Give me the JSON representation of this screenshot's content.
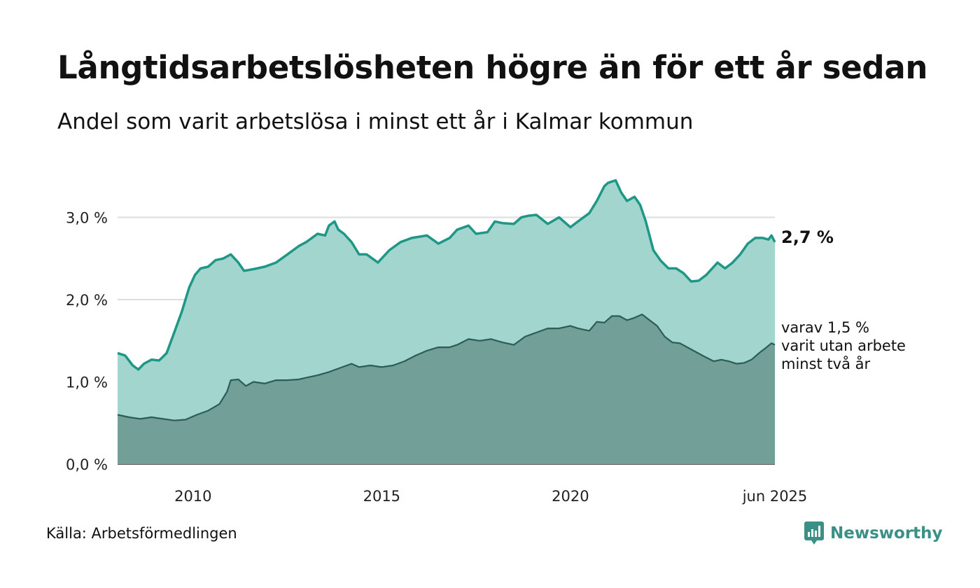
{
  "header": {
    "title": "Långtidsarbetslösheten högre än för ett år sedan",
    "subtitle": "Andel som varit arbetslösa i minst ett år i Kalmar kommun"
  },
  "footer": {
    "source": "Källa: Arbetsförmedlingen",
    "brand": "Newsworthy"
  },
  "colors": {
    "total_line": "#1f9787",
    "total_fill": "#a3d5cf",
    "sub_line": "#2b5e56",
    "sub_fill": "#729f97",
    "grid": "#dddddd",
    "brand": "#3a8f86"
  },
  "chart_data": {
    "type": "area",
    "title": "Långtidsarbetslösheten högre än för ett år sedan",
    "subtitle": "Andel som varit arbetslösa i minst ett år i Kalmar kommun",
    "xlabel": "",
    "ylabel": "",
    "ylim": [
      0,
      3.6
    ],
    "xlim": [
      2008.0,
      2025.42
    ],
    "grid": true,
    "y_ticks": [
      {
        "value": 0,
        "label": "0,0 %"
      },
      {
        "value": 1,
        "label": "1,0 %"
      },
      {
        "value": 2,
        "label": "2,0 %"
      },
      {
        "value": 3,
        "label": "3,0 %"
      }
    ],
    "x_ticks": [
      {
        "value": 2010,
        "label": "2010"
      },
      {
        "value": 2015,
        "label": "2015"
      },
      {
        "value": 2020,
        "label": "2020"
      },
      {
        "value": 2025.42,
        "label": "jun 2025"
      }
    ],
    "annotations": {
      "total_end_label": "2,7 %",
      "sub_end_label": [
        "varav 1,5 %",
        "varit utan arbete",
        "minst två år"
      ]
    },
    "series": [
      {
        "x": [
          2008.0,
          2008.2,
          2008.4,
          2008.55,
          2008.7,
          2008.9,
          2009.1,
          2009.3,
          2009.5,
          2009.7,
          2009.9,
          2010.05,
          2010.2,
          2010.4,
          2010.6,
          2010.8,
          2011.0,
          2011.2,
          2011.35,
          2011.6,
          2011.9,
          2012.2,
          2012.5,
          2012.8,
          2013.0,
          2013.3,
          2013.5,
          2013.6,
          2013.75,
          2013.85,
          2014.0,
          2014.2,
          2014.4,
          2014.6,
          2014.9,
          2015.2,
          2015.5,
          2015.8,
          2016.2,
          2016.5,
          2016.8,
          2017.0,
          2017.3,
          2017.5,
          2017.8,
          2018.0,
          2018.2,
          2018.5,
          2018.7,
          2018.9,
          2019.1,
          2019.4,
          2019.7,
          2020.0,
          2020.2,
          2020.5,
          2020.7,
          2020.9,
          2021.0,
          2021.2,
          2021.35,
          2021.5,
          2021.7,
          2021.85,
          2022.0,
          2022.2,
          2022.4,
          2022.6,
          2022.8,
          2023.0,
          2023.2,
          2023.4,
          2023.6,
          2023.9,
          2024.1,
          2024.3,
          2024.5,
          2024.7,
          2024.9,
          2025.1,
          2025.25,
          2025.33,
          2025.42
        ],
        "y": [
          1.35,
          1.32,
          1.2,
          1.15,
          1.22,
          1.27,
          1.26,
          1.35,
          1.6,
          1.85,
          2.15,
          2.3,
          2.38,
          2.4,
          2.48,
          2.5,
          2.55,
          2.45,
          2.35,
          2.37,
          2.4,
          2.45,
          2.55,
          2.65,
          2.7,
          2.8,
          2.78,
          2.9,
          2.95,
          2.85,
          2.8,
          2.7,
          2.55,
          2.55,
          2.45,
          2.6,
          2.7,
          2.75,
          2.78,
          2.68,
          2.75,
          2.85,
          2.9,
          2.8,
          2.82,
          2.95,
          2.93,
          2.92,
          3.0,
          3.02,
          3.03,
          2.92,
          3.0,
          2.88,
          2.95,
          3.05,
          3.2,
          3.38,
          3.42,
          3.45,
          3.3,
          3.2,
          3.25,
          3.15,
          2.95,
          2.6,
          2.47,
          2.38,
          2.38,
          2.32,
          2.22,
          2.23,
          2.3,
          2.45,
          2.38,
          2.45,
          2.55,
          2.68,
          2.75,
          2.75,
          2.73,
          2.78,
          2.7
        ],
        "style": "light"
      },
      {
        "x": [
          2008.0,
          2008.3,
          2008.6,
          2008.9,
          2009.2,
          2009.5,
          2009.8,
          2010.1,
          2010.4,
          2010.7,
          2010.9,
          2011.0,
          2011.2,
          2011.4,
          2011.6,
          2011.9,
          2012.2,
          2012.5,
          2012.8,
          2013.0,
          2013.3,
          2013.6,
          2013.9,
          2014.2,
          2014.4,
          2014.7,
          2015.0,
          2015.3,
          2015.6,
          2015.9,
          2016.2,
          2016.5,
          2016.8,
          2017.0,
          2017.3,
          2017.6,
          2017.9,
          2018.2,
          2018.5,
          2018.8,
          2019.1,
          2019.4,
          2019.7,
          2020.0,
          2020.2,
          2020.5,
          2020.7,
          2020.9,
          2021.1,
          2021.3,
          2021.5,
          2021.7,
          2021.9,
          2022.1,
          2022.3,
          2022.5,
          2022.7,
          2022.9,
          2023.1,
          2023.3,
          2023.5,
          2023.8,
          2024.0,
          2024.2,
          2024.4,
          2024.6,
          2024.8,
          2025.0,
          2025.2,
          2025.33,
          2025.42
        ],
        "y": [
          0.6,
          0.57,
          0.55,
          0.57,
          0.55,
          0.53,
          0.54,
          0.6,
          0.65,
          0.73,
          0.88,
          1.02,
          1.03,
          0.95,
          1.0,
          0.98,
          1.02,
          1.02,
          1.03,
          1.05,
          1.08,
          1.12,
          1.17,
          1.22,
          1.18,
          1.2,
          1.18,
          1.2,
          1.25,
          1.32,
          1.38,
          1.42,
          1.42,
          1.45,
          1.52,
          1.5,
          1.52,
          1.48,
          1.45,
          1.55,
          1.6,
          1.65,
          1.65,
          1.68,
          1.65,
          1.62,
          1.73,
          1.72,
          1.8,
          1.8,
          1.75,
          1.78,
          1.82,
          1.75,
          1.68,
          1.55,
          1.48,
          1.47,
          1.42,
          1.37,
          1.32,
          1.25,
          1.27,
          1.25,
          1.22,
          1.23,
          1.27,
          1.35,
          1.42,
          1.47,
          1.45
        ],
        "style": "dark"
      }
    ]
  }
}
